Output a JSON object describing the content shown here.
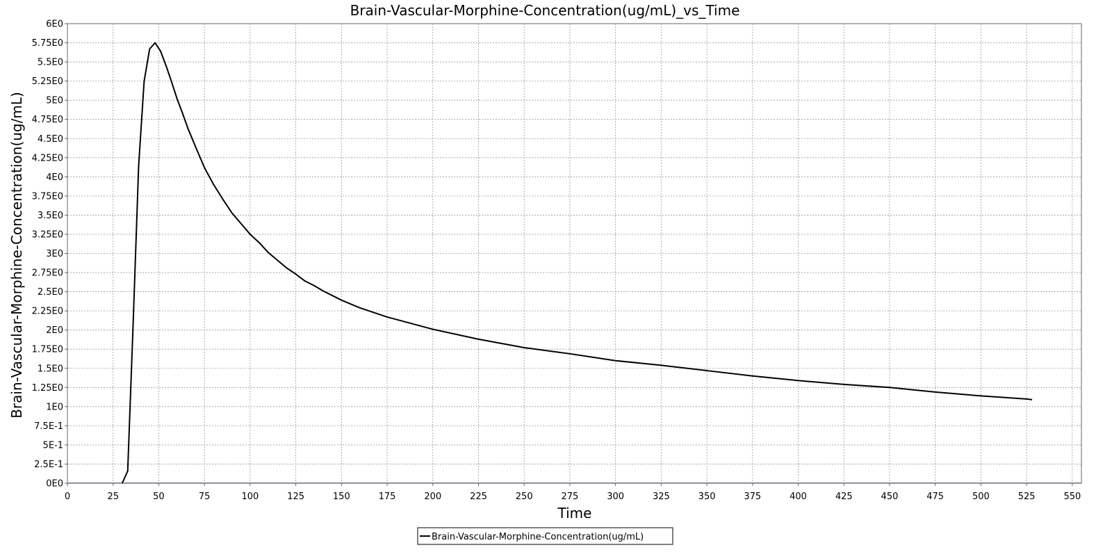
{
  "chart_data": {
    "type": "line",
    "title": "Brain-Vascular-Morphine-Concentration(ug/mL)_vs_Time",
    "xlabel": "Time",
    "ylabel": "Brain-Vascular-Morphine-Concentration(ug/mL)",
    "xlim": [
      0,
      555
    ],
    "ylim": [
      0,
      6.0
    ],
    "grid": true,
    "legend_position": "bottom-center",
    "x_ticks": [
      0,
      25,
      50,
      75,
      100,
      125,
      150,
      175,
      200,
      225,
      250,
      275,
      300,
      325,
      350,
      375,
      400,
      425,
      450,
      475,
      500,
      525,
      550
    ],
    "x_tick_labels": [
      "0",
      "25",
      "50",
      "75",
      "100",
      "125",
      "150",
      "175",
      "200",
      "225",
      "250",
      "275",
      "300",
      "325",
      "350",
      "375",
      "400",
      "425",
      "450",
      "475",
      "500",
      "525",
      "550"
    ],
    "y_ticks": [
      0,
      0.25,
      0.5,
      0.75,
      1.0,
      1.25,
      1.5,
      1.75,
      2.0,
      2.25,
      2.5,
      2.75,
      3.0,
      3.25,
      3.5,
      3.75,
      4.0,
      4.25,
      4.5,
      4.75,
      5.0,
      5.25,
      5.5,
      5.75,
      6.0
    ],
    "y_tick_labels": [
      "0E0",
      "2.5E-1",
      "5E-1",
      "7.5E-1",
      "1E0",
      "1.25E0",
      "1.5E0",
      "1.75E0",
      "2E0",
      "2.25E0",
      "2.5E0",
      "2.75E0",
      "3E0",
      "3.25E0",
      "3.5E0",
      "3.75E0",
      "4E0",
      "4.25E0",
      "4.5E0",
      "4.75E0",
      "5E0",
      "5.25E0",
      "5.5E0",
      "5.75E0",
      "6E0"
    ],
    "series": [
      {
        "name": "Brain-Vascular-Morphine-Concentration(ug/mL)",
        "color": "#000000",
        "x": [
          30,
          33,
          36,
          39,
          42,
          45,
          48,
          51,
          54,
          57,
          60,
          63,
          66,
          70,
          75,
          80,
          85,
          90,
          95,
          100,
          105,
          110,
          115,
          120,
          125,
          130,
          135,
          140,
          150,
          160,
          175,
          200,
          225,
          250,
          275,
          300,
          325,
          350,
          375,
          400,
          425,
          450,
          475,
          500,
          525,
          528
        ],
        "y": [
          0.0,
          0.16,
          2.1,
          4.15,
          5.25,
          5.67,
          5.75,
          5.64,
          5.45,
          5.24,
          5.02,
          4.83,
          4.63,
          4.4,
          4.12,
          3.9,
          3.71,
          3.53,
          3.39,
          3.25,
          3.14,
          3.01,
          2.91,
          2.81,
          2.73,
          2.64,
          2.58,
          2.51,
          2.39,
          2.29,
          2.17,
          2.01,
          1.88,
          1.77,
          1.69,
          1.6,
          1.54,
          1.47,
          1.4,
          1.34,
          1.29,
          1.25,
          1.19,
          1.14,
          1.1,
          1.09
        ]
      }
    ]
  }
}
